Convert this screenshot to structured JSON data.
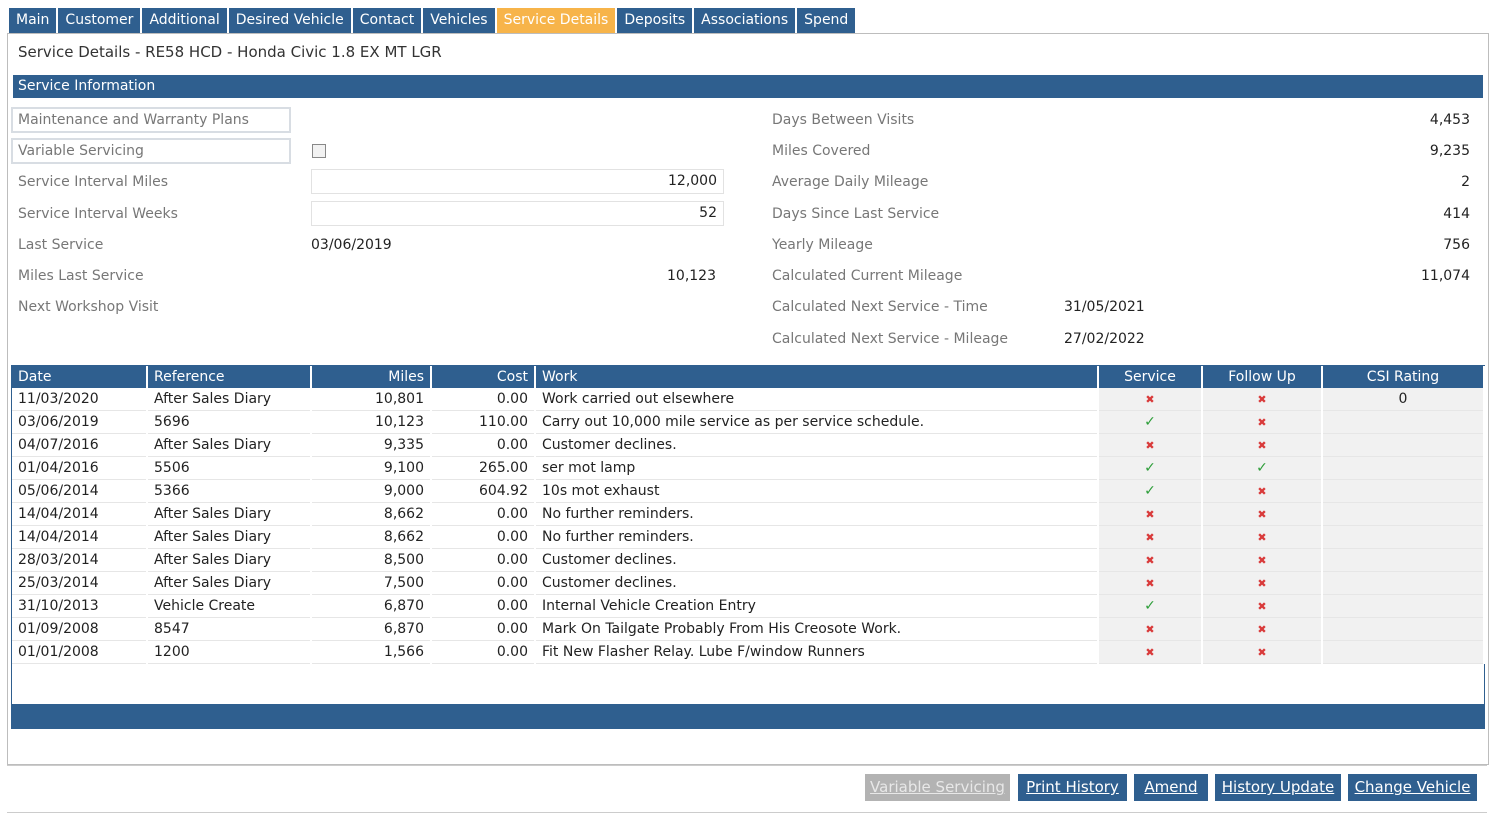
{
  "tabs": [
    {
      "label": "Main"
    },
    {
      "label": "Customer"
    },
    {
      "label": "Additional"
    },
    {
      "label": "Desired Vehicle"
    },
    {
      "label": "Contact"
    },
    {
      "label": "Vehicles"
    },
    {
      "label": "Service Details"
    },
    {
      "label": "Deposits"
    },
    {
      "label": "Associations"
    },
    {
      "label": "Spend"
    }
  ],
  "page_title": "Service Details - RE58 HCD - Honda Civic 1.8 EX MT LGR",
  "section_title": "Service Information",
  "left": {
    "maintenance_label": "Maintenance and Warranty Plans",
    "variable_servicing_label": "Variable Servicing",
    "service_interval_miles_label": "Service Interval Miles",
    "service_interval_miles_value": "12,000",
    "service_interval_weeks_label": "Service Interval Weeks",
    "service_interval_weeks_value": "52",
    "last_service_label": "Last Service",
    "last_service_value": "03/06/2019",
    "miles_last_service_label": "Miles Last Service",
    "miles_last_service_value": "10,123",
    "next_workshop_visit_label": "Next Workshop Visit"
  },
  "right": {
    "days_between_visits_label": "Days Between Visits",
    "days_between_visits_value": "4,453",
    "miles_covered_label": "Miles Covered",
    "miles_covered_value": "9,235",
    "average_daily_mileage_label": "Average Daily Mileage",
    "average_daily_mileage_value": "2",
    "days_since_last_service_label": "Days Since Last Service",
    "days_since_last_service_value": "414",
    "yearly_mileage_label": "Yearly Mileage",
    "yearly_mileage_value": "756",
    "calculated_current_mileage_label": "Calculated Current Mileage",
    "calculated_current_mileage_value": "11,074",
    "calculated_next_service_time_label": "Calculated Next Service - Time",
    "calculated_next_service_time_value": "31/05/2021",
    "calculated_next_service_mileage_label": "Calculated Next Service - Mileage",
    "calculated_next_service_mileage_value": "27/02/2022"
  },
  "table": {
    "headers": {
      "date": "Date",
      "reference": "Reference",
      "miles": "Miles",
      "cost": "Cost",
      "work": "Work",
      "service": "Service",
      "follow_up": "Follow Up",
      "csi": "CSI Rating"
    },
    "rows": [
      {
        "date": "11/03/2020",
        "reference": "After Sales Diary",
        "miles": "10,801",
        "cost": "0.00",
        "work": "Work carried out elsewhere",
        "service": "no",
        "follow_up": "no",
        "csi": "0"
      },
      {
        "date": "03/06/2019",
        "reference": "5696",
        "miles": "10,123",
        "cost": "110.00",
        "work": "Carry out 10,000 mile service as per service schedule.",
        "service": "yes",
        "follow_up": "no",
        "csi": ""
      },
      {
        "date": "04/07/2016",
        "reference": "After Sales Diary",
        "miles": "9,335",
        "cost": "0.00",
        "work": "Customer declines.",
        "service": "no",
        "follow_up": "no",
        "csi": ""
      },
      {
        "date": "01/04/2016",
        "reference": "5506",
        "miles": "9,100",
        "cost": "265.00",
        "work": "ser mot lamp",
        "service": "yes",
        "follow_up": "yes",
        "csi": ""
      },
      {
        "date": "05/06/2014",
        "reference": "5366",
        "miles": "9,000",
        "cost": "604.92",
        "work": "10s mot exhaust",
        "service": "yes",
        "follow_up": "no",
        "csi": ""
      },
      {
        "date": "14/04/2014",
        "reference": "After Sales Diary",
        "miles": "8,662",
        "cost": "0.00",
        "work": "No further reminders.",
        "service": "no",
        "follow_up": "no",
        "csi": ""
      },
      {
        "date": "14/04/2014",
        "reference": "After Sales Diary",
        "miles": "8,662",
        "cost": "0.00",
        "work": "No further reminders.",
        "service": "no",
        "follow_up": "no",
        "csi": ""
      },
      {
        "date": "28/03/2014",
        "reference": "After Sales Diary",
        "miles": "8,500",
        "cost": "0.00",
        "work": "Customer declines.",
        "service": "no",
        "follow_up": "no",
        "csi": ""
      },
      {
        "date": "25/03/2014",
        "reference": "After Sales Diary",
        "miles": "7,500",
        "cost": "0.00",
        "work": "Customer declines.",
        "service": "no",
        "follow_up": "no",
        "csi": ""
      },
      {
        "date": "31/10/2013",
        "reference": "Vehicle Create",
        "miles": "6,870",
        "cost": "0.00",
        "work": "Internal Vehicle Creation Entry",
        "service": "yes",
        "follow_up": "no",
        "csi": ""
      },
      {
        "date": "01/09/2008",
        "reference": "8547",
        "miles": "6,870",
        "cost": "0.00",
        "work": "Mark On Tailgate Probably From His Creosote Work.",
        "service": "no",
        "follow_up": "no",
        "csi": ""
      },
      {
        "date": "01/01/2008",
        "reference": "1200",
        "miles": "1,566",
        "cost": "0.00",
        "work": "Fit New Flasher Relay. Lube F/window Runners",
        "service": "no",
        "follow_up": "no",
        "csi": ""
      }
    ]
  },
  "buttons": {
    "variable_servicing": "Variable Servicing",
    "print_history": "Print History",
    "amend": "Amend",
    "history_update": "History Update",
    "change_vehicle": "Change Vehicle"
  },
  "colors": {
    "primary": "#2f5f8f",
    "active_tab": "#f7b44a",
    "tick": "#2e9e3a",
    "cross": "#d93a3a"
  },
  "icons": {
    "yes": "check-icon",
    "no": "cross-icon"
  }
}
